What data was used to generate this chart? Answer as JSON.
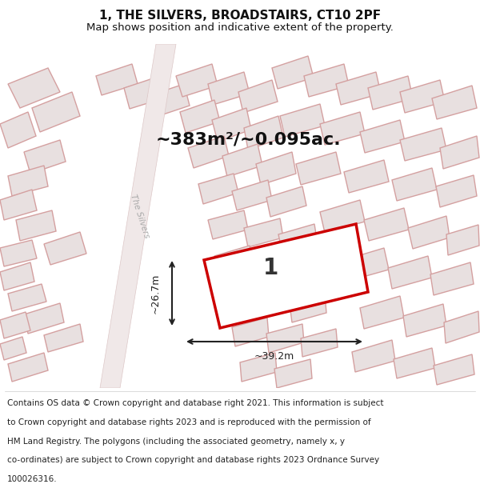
{
  "title": "1, THE SILVERS, BROADSTAIRS, CT10 2PF",
  "subtitle": "Map shows position and indicative extent of the property.",
  "area_text": "~383m²/~0.095ac.",
  "width_label": "~39.2m",
  "height_label": "~26.7m",
  "plot_number": "1",
  "road_label": "The Silvers",
  "footer_lines": [
    "Contains OS data © Crown copyright and database right 2021. This information is subject",
    "to Crown copyright and database rights 2023 and is reproduced with the permission of",
    "HM Land Registry. The polygons (including the associated geometry, namely x, y",
    "co-ordinates) are subject to Crown copyright and database rights 2023 Ordnance Survey",
    "100026316."
  ],
  "map_bg": "#f8f4f4",
  "building_fill": "#e8e0e0",
  "building_edge": "#d4a0a0",
  "plot_edge": "#cc0000",
  "dim_color": "#222222",
  "title_fontsize": 11,
  "subtitle_fontsize": 9.5,
  "footer_fontsize": 7.5
}
